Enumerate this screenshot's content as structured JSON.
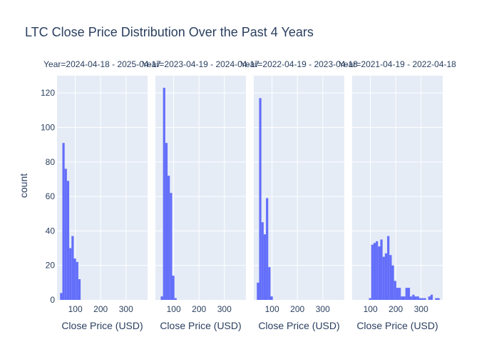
{
  "chart_data": {
    "type": "bar",
    "title": "LTC Close Price Distribution Over the Past 4 Years",
    "xlabel": "Close Price (USD)",
    "ylabel": "count",
    "ylim": [
      0,
      130
    ],
    "xlim": [
      28,
      385
    ],
    "x_ticks": [
      100,
      200,
      300
    ],
    "x_tick_labels": [
      "100",
      "200",
      "300"
    ],
    "y_ticks": [
      0,
      20,
      40,
      60,
      80,
      100,
      120
    ],
    "bin_width": 9,
    "grid": true,
    "bar_color": "#636efa",
    "plot_bg": "#e5ecf6",
    "facets": [
      {
        "label": "Year=2024-04-18 - 2025-04-17",
        "bins": [
          {
            "x": 40,
            "count": 4
          },
          {
            "x": 49,
            "count": 91
          },
          {
            "x": 58,
            "count": 76
          },
          {
            "x": 67,
            "count": 69
          },
          {
            "x": 76,
            "count": 30
          },
          {
            "x": 85,
            "count": 37
          },
          {
            "x": 94,
            "count": 24
          },
          {
            "x": 103,
            "count": 22
          },
          {
            "x": 112,
            "count": 12
          }
        ]
      },
      {
        "label": "Year=2023-04-19 - 2024-04-17",
        "bins": [
          {
            "x": 49,
            "count": 2
          },
          {
            "x": 58,
            "count": 123
          },
          {
            "x": 67,
            "count": 91
          },
          {
            "x": 76,
            "count": 72
          },
          {
            "x": 85,
            "count": 62
          },
          {
            "x": 94,
            "count": 14
          },
          {
            "x": 103,
            "count": 1
          }
        ]
      },
      {
        "label": "Year=2022-04-19 - 2023-04-18",
        "bins": [
          {
            "x": 40,
            "count": 10
          },
          {
            "x": 49,
            "count": 117
          },
          {
            "x": 58,
            "count": 45
          },
          {
            "x": 67,
            "count": 38
          },
          {
            "x": 76,
            "count": 59
          },
          {
            "x": 85,
            "count": 19
          },
          {
            "x": 94,
            "count": 2
          }
        ]
      },
      {
        "label": "Year=2021-04-19 - 2022-04-18",
        "bins": [
          {
            "x": 94,
            "count": 1
          },
          {
            "x": 103,
            "count": 32
          },
          {
            "x": 112,
            "count": 33
          },
          {
            "x": 121,
            "count": 34
          },
          {
            "x": 130,
            "count": 31
          },
          {
            "x": 139,
            "count": 35
          },
          {
            "x": 148,
            "count": 25
          },
          {
            "x": 157,
            "count": 27
          },
          {
            "x": 166,
            "count": 37
          },
          {
            "x": 175,
            "count": 26
          },
          {
            "x": 184,
            "count": 20
          },
          {
            "x": 193,
            "count": 11
          },
          {
            "x": 202,
            "count": 7
          },
          {
            "x": 211,
            "count": 7
          },
          {
            "x": 220,
            "count": 2
          },
          {
            "x": 229,
            "count": 2
          },
          {
            "x": 238,
            "count": 7
          },
          {
            "x": 247,
            "count": 7
          },
          {
            "x": 256,
            "count": 2
          },
          {
            "x": 265,
            "count": 3
          },
          {
            "x": 274,
            "count": 2
          },
          {
            "x": 283,
            "count": 2
          },
          {
            "x": 292,
            "count": 1
          },
          {
            "x": 301,
            "count": 1
          },
          {
            "x": 310,
            "count": 1
          },
          {
            "x": 328,
            "count": 2
          },
          {
            "x": 337,
            "count": 3
          },
          {
            "x": 355,
            "count": 1
          },
          {
            "x": 364,
            "count": 1
          }
        ]
      }
    ]
  }
}
